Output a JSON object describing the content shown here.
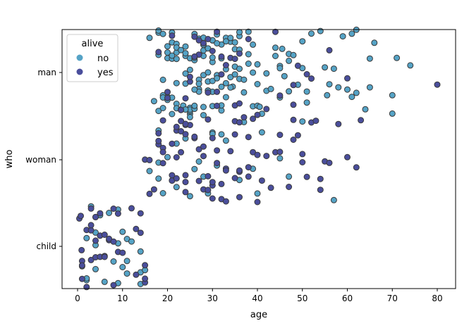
{
  "chart_data": {
    "type": "scatter",
    "subtype": "stripplot",
    "xlabel": "age",
    "ylabel": "who",
    "xlim": [
      -3.5,
      84
    ],
    "xticks": [
      0,
      10,
      20,
      30,
      40,
      50,
      60,
      70,
      80
    ],
    "categories": [
      "man",
      "woman",
      "child"
    ],
    "legend": {
      "title": "alive",
      "placement": "top-left",
      "entries": [
        "no",
        "yes"
      ]
    },
    "colors": {
      "no": "#55a3c6",
      "yes": "#4a4e9c",
      "edge": "#3a3a3a"
    },
    "grid": false,
    "series": [
      {
        "who": "man",
        "alive": "no",
        "ages": [
          16,
          17,
          18,
          18,
          18,
          19,
          19,
          19,
          19,
          20,
          20,
          20,
          20,
          21,
          21,
          21,
          21,
          21,
          22,
          22,
          22,
          22,
          22,
          23,
          23,
          23,
          24,
          24,
          24,
          24,
          25,
          25,
          25,
          25,
          25,
          26,
          26,
          26,
          26,
          27,
          27,
          27,
          28,
          28,
          28,
          28,
          28,
          29,
          29,
          29,
          30,
          30,
          30,
          30,
          30,
          31,
          31,
          31,
          32,
          32,
          32,
          32,
          33,
          33,
          33,
          34,
          34,
          34,
          35,
          35,
          35,
          36,
          36,
          36,
          37,
          37,
          38,
          38,
          39,
          39,
          40,
          40,
          40,
          41,
          42,
          42,
          43,
          44,
          44,
          45,
          45,
          46,
          47,
          47,
          48,
          49,
          50,
          50,
          51,
          52,
          54,
          55,
          56,
          57,
          58,
          59,
          60,
          61,
          61,
          62,
          64,
          65,
          65,
          66,
          70,
          70,
          71,
          74,
          28,
          30,
          24,
          19,
          36,
          45,
          33,
          27,
          22,
          26,
          31,
          38,
          40.5,
          34.5,
          23.5,
          29,
          32,
          25,
          21,
          18,
          20,
          27,
          30,
          35,
          22,
          24,
          28,
          45.5,
          55.5,
          34,
          39,
          29,
          36,
          47,
          51,
          62,
          33,
          26
        ]
      },
      {
        "who": "man",
        "alive": "yes",
        "ages": [
          18,
          20,
          21,
          23,
          25,
          25,
          26,
          27,
          27,
          28,
          29,
          30,
          31,
          32,
          32,
          34,
          35,
          35,
          36,
          38,
          40,
          42,
          44,
          45,
          48,
          48,
          49,
          51,
          52,
          56,
          60,
          80,
          24,
          26,
          29,
          31,
          36,
          20,
          31,
          33
        ]
      },
      {
        "who": "woman",
        "alive": "no",
        "ages": [
          16,
          18,
          18,
          19,
          20,
          21,
          22,
          24,
          25,
          26,
          27,
          28,
          29,
          30,
          31,
          32,
          33,
          36,
          37,
          39,
          40,
          41,
          45,
          47,
          50,
          57,
          18,
          22,
          30,
          25
        ]
      },
      {
        "who": "woman",
        "alive": "yes",
        "ages": [
          15,
          16,
          16,
          17,
          18,
          18,
          19,
          19,
          19,
          21,
          21,
          22,
          22,
          22,
          23,
          23,
          24,
          24,
          24,
          24,
          25,
          26,
          27,
          28,
          28,
          29,
          29,
          30,
          30,
          30,
          31,
          31,
          32,
          33,
          33,
          34,
          35,
          35,
          36,
          36,
          37,
          38,
          38,
          39,
          39,
          40,
          41,
          42,
          43,
          44,
          45,
          47,
          48,
          49,
          50,
          51,
          52,
          53,
          54,
          55,
          56,
          58,
          60,
          62,
          63,
          18,
          24,
          27,
          32,
          35,
          36,
          38,
          45,
          50,
          22,
          23,
          26,
          29,
          30,
          33,
          19,
          21,
          28,
          24,
          36,
          40,
          48,
          54
        ]
      },
      {
        "who": "child",
        "alive": "no",
        "ages": [
          1,
          2,
          2,
          3,
          4,
          4,
          4,
          5,
          6,
          7,
          8,
          9,
          9,
          10,
          10,
          11,
          11,
          12,
          14,
          14,
          14,
          15,
          2,
          4,
          9,
          11
        ]
      },
      {
        "who": "child",
        "alive": "yes",
        "ages": [
          0.4,
          0.7,
          0.9,
          1,
          1,
          2,
          2,
          3,
          3,
          3,
          4,
          4,
          4,
          5,
          5,
          6,
          6,
          7,
          7,
          8,
          8,
          9,
          9,
          10,
          12,
          13,
          14,
          15,
          15,
          15,
          1,
          3,
          5,
          6,
          8,
          13,
          14
        ]
      }
    ]
  }
}
